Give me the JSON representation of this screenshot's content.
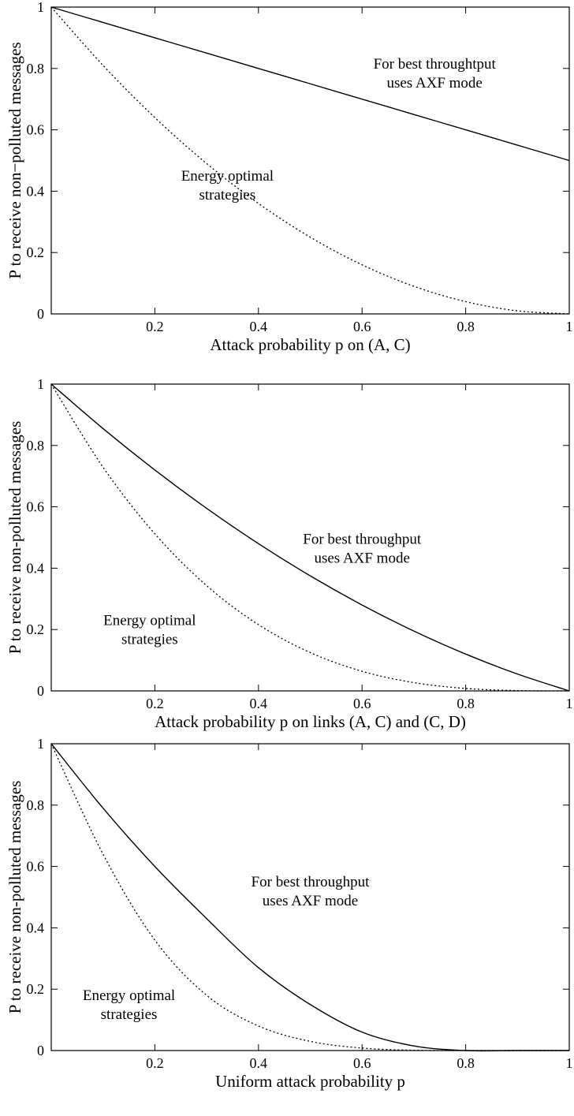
{
  "chart_data": [
    {
      "type": "line",
      "xlabel": "Attack probability p on (A, C)",
      "ylabel": "P to receive non−polluted messages",
      "xlim": [
        0,
        1
      ],
      "ylim": [
        0,
        1
      ],
      "x_ticks": [
        "0.2",
        "0.4",
        "0.6",
        "0.8",
        "1"
      ],
      "y_ticks": [
        "0",
        "0.2",
        "0.4",
        "0.6",
        "0.8",
        "1"
      ],
      "grid": false,
      "series": [
        {
          "style": "solid",
          "color": "#000000",
          "x": [
            0,
            0.1,
            0.2,
            0.3,
            0.4,
            0.5,
            0.6,
            0.7,
            0.8,
            0.9,
            1.0
          ],
          "y": [
            1.0,
            0.95,
            0.9,
            0.85,
            0.8,
            0.75,
            0.7,
            0.65,
            0.6,
            0.55,
            0.5
          ]
        },
        {
          "style": "dotted",
          "color": "#000000",
          "x": [
            0,
            0.1,
            0.2,
            0.3,
            0.4,
            0.5,
            0.6,
            0.7,
            0.8,
            0.9,
            1.0
          ],
          "y": [
            1.0,
            0.81,
            0.64,
            0.49,
            0.36,
            0.25,
            0.16,
            0.09,
            0.04,
            0.01,
            0.0
          ]
        }
      ],
      "annotations": [
        {
          "lines": [
            "For best throughtput",
            "uses AXF mode"
          ],
          "x": 0.74,
          "y": 0.8
        },
        {
          "lines": [
            "Energy optimal",
            "strategies"
          ],
          "x": 0.34,
          "y": 0.435
        }
      ]
    },
    {
      "type": "line",
      "xlabel": "Attack probability p on links (A, C) and (C, D)",
      "ylabel": "P to receive non-polluted messages",
      "xlim": [
        0,
        1
      ],
      "ylim": [
        0,
        1
      ],
      "x_ticks": [
        "0.2",
        "0.4",
        "0.6",
        "0.8",
        "1"
      ],
      "y_ticks": [
        "0",
        "0.2",
        "0.4",
        "0.6",
        "0.8",
        "1"
      ],
      "grid": false,
      "series": [
        {
          "style": "solid",
          "color": "#000000",
          "x": [
            0,
            0.1,
            0.2,
            0.3,
            0.4,
            0.5,
            0.6,
            0.7,
            0.8,
            0.9,
            1.0
          ],
          "y": [
            1.0,
            0.855,
            0.72,
            0.595,
            0.48,
            0.375,
            0.28,
            0.195,
            0.12,
            0.055,
            0.0
          ]
        },
        {
          "style": "dotted",
          "color": "#000000",
          "x": [
            0,
            0.1,
            0.2,
            0.3,
            0.4,
            0.5,
            0.6,
            0.7,
            0.8,
            0.9,
            1.0
          ],
          "y": [
            1.0,
            0.729,
            0.512,
            0.343,
            0.216,
            0.125,
            0.064,
            0.027,
            0.008,
            0.001,
            0.0
          ]
        }
      ],
      "annotations": [
        {
          "lines": [
            "For best throughput",
            "uses AXF mode"
          ],
          "x": 0.6,
          "y": 0.48
        },
        {
          "lines": [
            "Energy optimal",
            "strategies"
          ],
          "x": 0.19,
          "y": 0.215
        }
      ]
    },
    {
      "type": "line",
      "xlabel": "Uniform attack probability p",
      "ylabel": "P to receive non-polluted messages",
      "xlim": [
        0,
        1
      ],
      "ylim": [
        0,
        1
      ],
      "x_ticks": [
        "0.2",
        "0.4",
        "0.6",
        "0.8",
        "1"
      ],
      "y_ticks": [
        "0",
        "0.2",
        "0.4",
        "0.6",
        "0.8",
        "1"
      ],
      "grid": false,
      "series": [
        {
          "style": "solid",
          "color": "#000000",
          "x": [
            0,
            0.1,
            0.2,
            0.3,
            0.4,
            0.5,
            0.6,
            0.7,
            0.8,
            0.9,
            1.0
          ],
          "y": [
            1.0,
            0.79,
            0.6,
            0.43,
            0.27,
            0.15,
            0.06,
            0.015,
            0.0,
            0.0,
            0.0
          ]
        },
        {
          "style": "dotted",
          "color": "#000000",
          "x": [
            0,
            0.1,
            0.2,
            0.3,
            0.4,
            0.5,
            0.6,
            0.7,
            0.8,
            0.9,
            1.0
          ],
          "y": [
            1.0,
            0.64,
            0.36,
            0.18,
            0.08,
            0.03,
            0.008,
            0.001,
            0.0,
            0.0,
            0.0
          ]
        }
      ],
      "annotations": [
        {
          "lines": [
            "For best throughput",
            "uses AXF mode"
          ],
          "x": 0.5,
          "y": 0.535
        },
        {
          "lines": [
            "Energy optimal",
            "strategies"
          ],
          "x": 0.15,
          "y": 0.165
        }
      ]
    }
  ]
}
